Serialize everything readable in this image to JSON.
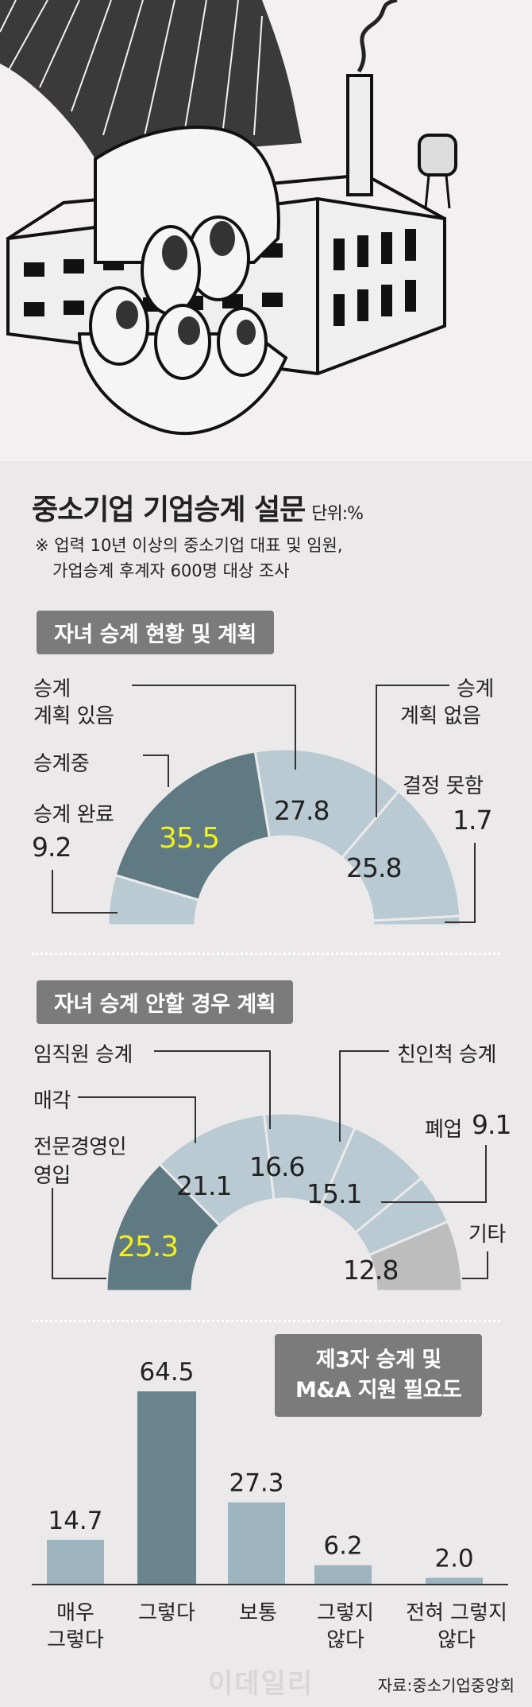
{
  "header": {
    "title": "중소기업 기업승계 설문",
    "unit": "단위:%",
    "note_line1": "※ 업력 10년 이상의 중소기업 대표 및 임원,",
    "note_line2": "가업승계 후계자 600명 대상 조사"
  },
  "source": "자료:중소기업중앙회",
  "watermark": "이데일리",
  "colors": {
    "dark_slate": "#5f7a82",
    "light_blue": "#b9cad3",
    "medium_blue": "#9eb4be",
    "bar_dark": "#6a858e",
    "grey": "#bdbdbe",
    "highlight_yellow": "#f5ef19",
    "section_box": "#7b7b7c"
  },
  "chart_data": [
    {
      "type": "pie",
      "title": "자녀 승계 현황 및 계획",
      "shape": "semi-donut",
      "slices": [
        {
          "label": "승계 완료",
          "value": 9.2
        },
        {
          "label": "승계중",
          "value": 35.5
        },
        {
          "label": "승계 계획 있음",
          "value": 27.8
        },
        {
          "label": "승계 계획 없음",
          "value": 25.8
        },
        {
          "label": "결정 못함",
          "value": 1.7
        }
      ]
    },
    {
      "type": "pie",
      "title": "자녀 승계 안할 경우 계획",
      "shape": "semi-donut",
      "slices": [
        {
          "label": "전문경영인 영입",
          "value": 25.3
        },
        {
          "label": "매각",
          "value": 21.1
        },
        {
          "label": "임직원 승계",
          "value": 16.6
        },
        {
          "label": "친인척 승계",
          "value": 15.1
        },
        {
          "label": "폐업",
          "value": 9.1
        },
        {
          "label": "기타",
          "value": 12.8
        }
      ]
    },
    {
      "type": "bar",
      "title": "제3자 승계 및 M&A 지원 필요도",
      "categories": [
        "매우 그렇다",
        "그렇다",
        "보통",
        "그렇지 않다",
        "전혀 그렇지 않다"
      ],
      "values": [
        14.7,
        64.5,
        27.3,
        6.2,
        2.0
      ],
      "ylim": [
        0,
        70
      ]
    }
  ],
  "labels": {
    "c1": {
      "done": "승계 완료",
      "done_val": "9.2",
      "ongoing": "승계중",
      "ongoing_val": "35.5",
      "plan_a": "승계",
      "plan_b": "계획 있음",
      "plan_val": "27.8",
      "noplan_a": "승계",
      "noplan_b": "계획 없음",
      "noplan_val": "25.8",
      "undecided": "결정 못함",
      "undecided_val": "1.7"
    },
    "c2": {
      "pro_a": "전문경영인",
      "pro_b": "영입",
      "pro_val": "25.3",
      "sale": "매각",
      "sale_val": "21.1",
      "staff": "임직원 승계",
      "staff_val": "16.6",
      "kin": "친인척 승계",
      "kin_val": "15.1",
      "close": "폐업",
      "close_val": "9.1",
      "etc": "기타",
      "etc_val": "12.8"
    },
    "c3": {
      "title_a": "제3자 승계 및",
      "title_b": "M&A 지원 필요도",
      "cat1_a": "매우",
      "cat1_b": "그렇다",
      "cat2": "그렇다",
      "cat3": "보통",
      "cat4_a": "그렇지",
      "cat4_b": "않다",
      "cat5_a": "전혀 그렇지",
      "cat5_b": "않다"
    }
  }
}
